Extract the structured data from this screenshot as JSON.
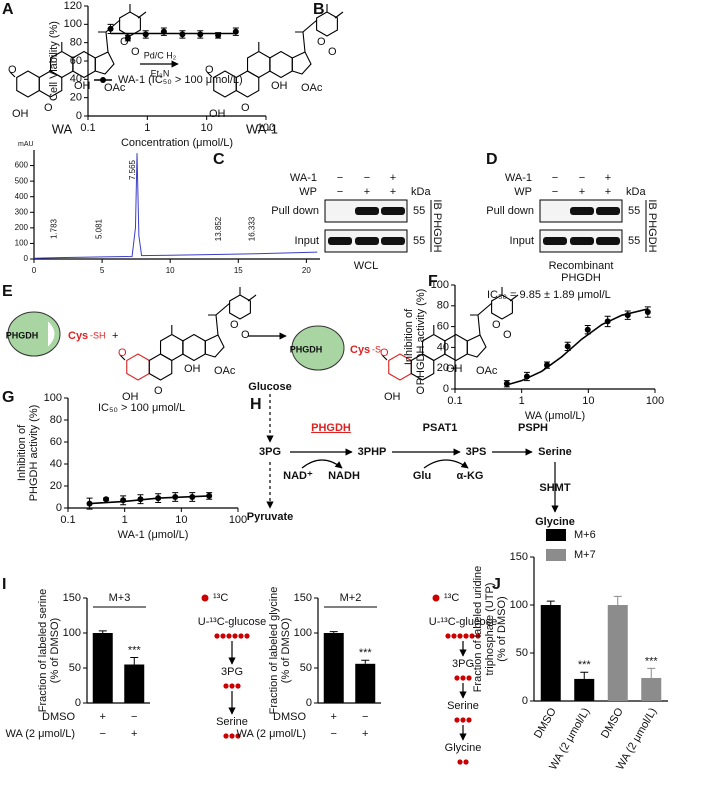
{
  "panel_labels": [
    "A",
    "B",
    "C",
    "D",
    "E",
    "F",
    "G",
    "H",
    "I",
    "J"
  ],
  "scheme_a": {
    "compounds": [
      "WA",
      "WA-1"
    ],
    "reagents": [
      "Pd/C  H₂",
      "Et₃N"
    ]
  },
  "molecule_labels": [
    "O",
    "O",
    "O",
    "OH",
    "OAc",
    "OH",
    "O"
  ],
  "blots": [
    {
      "rows": [
        {
          "name": "WA-1",
          "marks": [
            "−",
            "−",
            "+"
          ]
        },
        {
          "name": "WP",
          "marks": [
            "−",
            "+",
            "+"
          ]
        }
      ],
      "unit": "kDa",
      "lanes": [
        "Pull down",
        "Input"
      ],
      "size": [
        "55",
        "55"
      ],
      "antibody": "IB PHGDH",
      "caption": [
        "WCL"
      ]
    },
    {
      "rows": [
        {
          "name": "WA-1",
          "marks": [
            "−",
            "−",
            "+"
          ]
        },
        {
          "name": "WP",
          "marks": [
            "−",
            "+",
            "+"
          ]
        }
      ],
      "unit": "kDa",
      "lanes": [
        "Pull down",
        "Input"
      ],
      "size": [
        "55",
        "55"
      ],
      "antibody": "IB PHGDH",
      "caption": [
        "Recombinant",
        "PHGDH"
      ]
    }
  ],
  "reaction_e": {
    "protein": "PHGDH",
    "residue": "Cys",
    "thiol": "-SH",
    "plus": "+",
    "adduct": "-S"
  },
  "pathway": {
    "nodes": [
      "Glucose",
      "3PG",
      "Pyruvate",
      "3PHP",
      "3PS",
      "Serine",
      "Glycine"
    ],
    "enzymes": [
      "PHGDH",
      "PSAT1",
      "PSPH",
      "SHMT"
    ],
    "cofactors": [
      "NAD⁺",
      "NADH",
      "Glu",
      "α-KG"
    ]
  },
  "isotope": [
    {
      "legend": "¹³C",
      "steps": [
        "U-¹³C-glucose",
        "3PG",
        "Serine"
      ]
    },
    {
      "legend": "¹³C",
      "steps": [
        "U-¹³C-glucose",
        "3PG",
        "Serine",
        "Glycine"
      ]
    }
  ],
  "chart_data": [
    {
      "type": "line",
      "y_label": "mAU",
      "x": [
        0,
        1.783,
        4,
        5.081,
        7.2,
        7.45,
        7.565,
        7.7,
        7.9,
        10,
        13.852,
        16.333,
        20.8
      ],
      "values": [
        5,
        9,
        12,
        14,
        16,
        200,
        680,
        150,
        22,
        24,
        30,
        34,
        44
      ],
      "color": "#3d3dc8",
      "xlim": [
        0,
        21
      ],
      "xticks": [
        0,
        5,
        10,
        15,
        20
      ],
      "ylim": [
        0,
        700
      ],
      "yticks": [
        0,
        100,
        200,
        300,
        400,
        500,
        600
      ],
      "peak_labels": [
        1.783,
        5.081,
        7.565,
        13.852,
        16.333
      ]
    },
    {
      "type": "scatter",
      "x_label": "Concentration (μmol/L)",
      "y_label": [
        "Cell Viability (%)"
      ],
      "log_x": true,
      "x": [
        0.24,
        0.47,
        0.94,
        1.9,
        3.9,
        7.8,
        15.6,
        31
      ],
      "values": [
        95,
        85,
        89,
        92,
        89,
        89,
        88,
        92
      ],
      "errors": [
        5,
        3,
        4,
        4,
        4,
        4,
        3,
        4
      ],
      "fit": {
        "x": [
          0.24,
          31
        ],
        "values": [
          90,
          90
        ]
      },
      "xlim": [
        0.1,
        100
      ],
      "xticks": [
        0.1,
        1,
        10,
        100
      ],
      "ylim": [
        0,
        120
      ],
      "yticks": [
        0,
        20,
        40,
        60,
        80,
        100,
        120
      ],
      "legend": "WA-1 (IC₅₀ > 100 μmol/L)",
      "legend_position": "lower left",
      "color": "#000000"
    },
    {
      "type": "scatter",
      "x_label": "WA (μmol/L)",
      "y_label": [
        "Inhibition of",
        "PHGDH activity (%)"
      ],
      "annotation": "IC₅₀ = 9.85 ± 1.89 μmol/L",
      "log_x": true,
      "x": [
        0.6,
        1.2,
        2.4,
        4.9,
        9.8,
        19.5,
        39,
        78
      ],
      "values": [
        5,
        12,
        23,
        41,
        57,
        65,
        71,
        74
      ],
      "errors": [
        3,
        4,
        3,
        4,
        4,
        5,
        4,
        5
      ],
      "fit": {
        "x": [
          0.6,
          1,
          2,
          4,
          8,
          16,
          32,
          78
        ],
        "values": [
          4,
          8,
          17,
          31,
          48,
          62,
          71,
          77
        ]
      },
      "xlim": [
        0.1,
        100
      ],
      "xticks": [
        0.1,
        1,
        10,
        100
      ],
      "ylim": [
        0,
        100
      ],
      "yticks": [
        0,
        20,
        40,
        60,
        80,
        100
      ],
      "color": "#000000"
    },
    {
      "type": "scatter",
      "x_label": "WA-1 (μmol/L)",
      "y_label": [
        "Inhibition of",
        "PHGDH activity (%)"
      ],
      "annotation": "IC₅₀ > 100 μmol/L",
      "log_x": true,
      "x": [
        0.24,
        0.47,
        0.94,
        1.9,
        3.9,
        7.8,
        15.6,
        31
      ],
      "values": [
        4,
        8,
        7,
        8,
        9,
        10,
        10,
        11
      ],
      "errors": [
        5,
        1,
        4,
        4,
        4,
        4,
        4,
        3
      ],
      "fit": {
        "x": [
          0.24,
          1,
          4,
          31
        ],
        "values": [
          4,
          6,
          9,
          11
        ]
      },
      "xlim": [
        0.1,
        100
      ],
      "xticks": [
        0.1,
        1,
        10,
        100
      ],
      "ylim": [
        0,
        100
      ],
      "yticks": [
        0,
        20,
        40,
        60,
        80,
        100
      ],
      "color": "#000000"
    },
    {
      "type": "bar",
      "y_label": [
        "Fraction of labeled serine",
        "(% of DMSO)"
      ],
      "bracket": "M+3",
      "values": [
        100,
        55
      ],
      "errors": [
        3,
        10
      ],
      "significance": [
        null,
        "***"
      ],
      "conditions": [
        {
          "name": "DMSO",
          "marks": [
            "+",
            "−"
          ]
        },
        {
          "name": "WA (2 μmol/L)",
          "marks": [
            "−",
            "+"
          ]
        }
      ],
      "color": "#000000",
      "ylim": [
        0,
        150
      ],
      "yticks": [
        0,
        50,
        100,
        150
      ]
    },
    {
      "type": "bar",
      "y_label": [
        "Fraction of labeled glycine",
        "(% of DMSO)"
      ],
      "bracket": "M+2",
      "values": [
        100,
        56
      ],
      "errors": [
        2,
        5
      ],
      "significance": [
        null,
        "***"
      ],
      "conditions": [
        {
          "name": "DMSO",
          "marks": [
            "+",
            "−"
          ]
        },
        {
          "name": "WA (2 μmol/L)",
          "marks": [
            "−",
            "+"
          ]
        }
      ],
      "color": "#000000",
      "ylim": [
        0,
        150
      ],
      "yticks": [
        0,
        50,
        100,
        150
      ]
    },
    {
      "type": "grouped_bar",
      "y_label": [
        "Fraction of labeled uridine",
        "triphosphate (UTP)",
        "(% of DMSO)"
      ],
      "categories": [
        "DMSO",
        "WA (2 μmol/L)",
        "DMSO",
        "WA (2 μmol/L)"
      ],
      "series": [
        {
          "name": "M+6",
          "color": "#000000",
          "values": [
            100,
            23,
            null,
            null
          ],
          "errors": [
            4,
            7,
            null,
            null
          ],
          "significance": [
            null,
            "***",
            null,
            null
          ]
        },
        {
          "name": "M+7",
          "color": "#8c8c8c",
          "values": [
            null,
            null,
            100,
            24
          ],
          "errors": [
            null,
            null,
            9,
            10
          ],
          "significance": [
            null,
            null,
            null,
            "***"
          ]
        }
      ],
      "ylim": [
        0,
        150
      ],
      "yticks": [
        0,
        50,
        100,
        150
      ],
      "legend_position": "upper left"
    }
  ]
}
